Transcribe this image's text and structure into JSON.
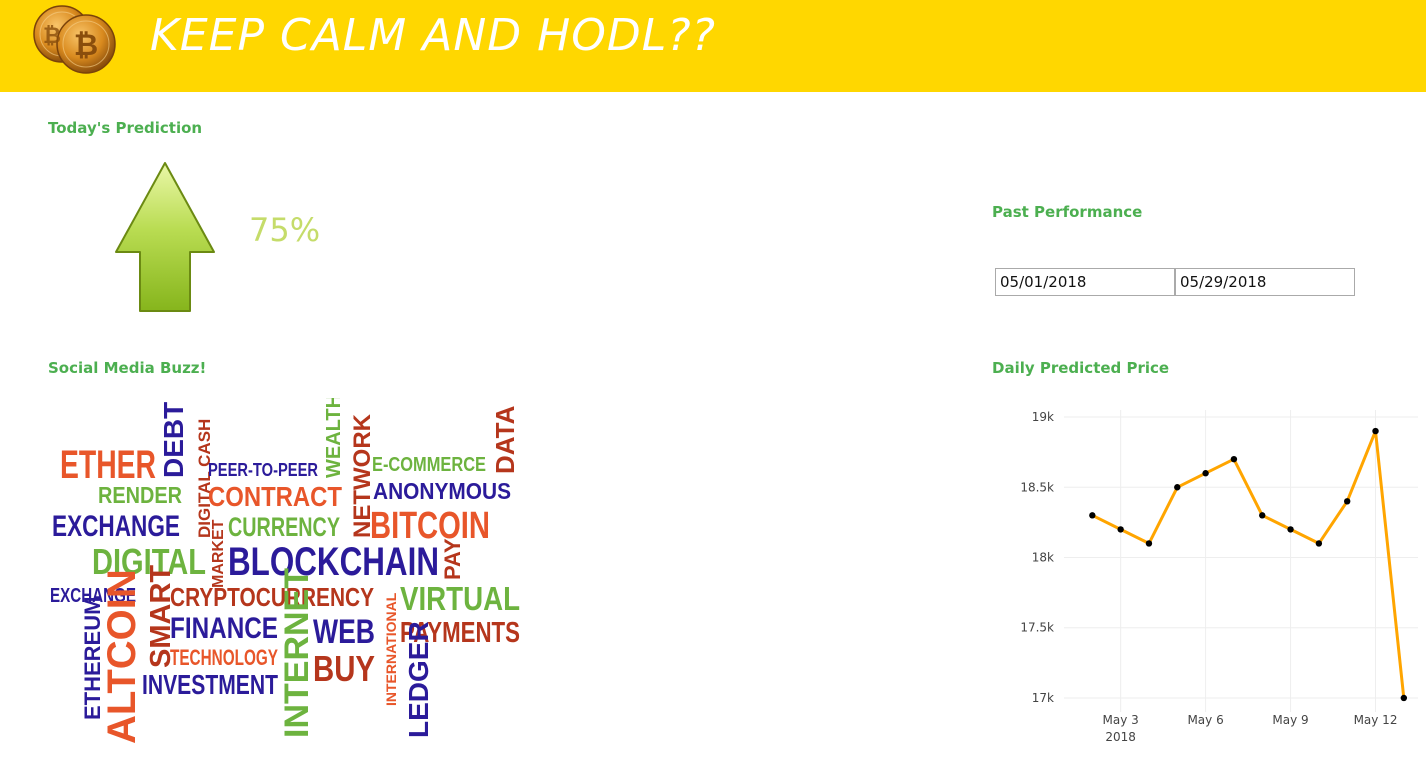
{
  "header": {
    "title": "KEEP CALM AND HODL??",
    "bg_color": "#FFD700",
    "logo_icon": "bitcoin-coins-icon"
  },
  "prediction": {
    "title": "Today's Prediction",
    "direction_icon": "arrow-up-icon",
    "percent": "75%",
    "percent_color": "#C5DC6A"
  },
  "past_performance": {
    "title": "Past Performance",
    "start_date": "05/01/2018",
    "end_date": "05/29/2018"
  },
  "social": {
    "title": "Social Media Buzz!",
    "words": [
      {
        "text": "ETHER",
        "color": "#E8562A"
      },
      {
        "text": "DEBT",
        "color": "#2B1B9A"
      },
      {
        "text": "DIGITAL CASH",
        "color": "#B5361C"
      },
      {
        "text": "PEER-TO-PEER",
        "color": "#2B1B9A"
      },
      {
        "text": "WEALTH",
        "color": "#6DB33F"
      },
      {
        "text": "NETWORK",
        "color": "#B5361C"
      },
      {
        "text": "E-COMMERCE",
        "color": "#6DB33F"
      },
      {
        "text": "DATA",
        "color": "#B5361C"
      },
      {
        "text": "RENDER",
        "color": "#6DB33F"
      },
      {
        "text": "CONTRACT",
        "color": "#E8562A"
      },
      {
        "text": "ANONYMOUS",
        "color": "#2B1B9A"
      },
      {
        "text": "EXCHANGE",
        "color": "#2B1B9A"
      },
      {
        "text": "CURRENCY",
        "color": "#6DB33F"
      },
      {
        "text": "BITCOIN",
        "color": "#E8562A"
      },
      {
        "text": "DIGITAL",
        "color": "#6DB33F"
      },
      {
        "text": "MARKET",
        "color": "#B5361C"
      },
      {
        "text": "BLOCKCHAIN",
        "color": "#2B1B9A"
      },
      {
        "text": "PAY",
        "color": "#B5361C"
      },
      {
        "text": "EXCHANGE",
        "color": "#2B1B9A"
      },
      {
        "text": "SMART",
        "color": "#B5361C"
      },
      {
        "text": "CRYPTOCURRENCY",
        "color": "#B5361C"
      },
      {
        "text": "VIRTUAL",
        "color": "#6DB33F"
      },
      {
        "text": "FINANCE",
        "color": "#2B1B9A"
      },
      {
        "text": "INTERNET",
        "color": "#6DB33F"
      },
      {
        "text": "WEB",
        "color": "#2B1B9A"
      },
      {
        "text": "INTERNATIONAL",
        "color": "#E8562A"
      },
      {
        "text": "PAYMENTS",
        "color": "#B5361C"
      },
      {
        "text": "ETHEREUM",
        "color": "#2B1B9A"
      },
      {
        "text": "ALTCOIN",
        "color": "#E8562A"
      },
      {
        "text": "TECHNOLOGY",
        "color": "#E8562A"
      },
      {
        "text": "BUY",
        "color": "#B5361C"
      },
      {
        "text": "INVESTMENT",
        "color": "#2B1B9A"
      },
      {
        "text": "LEDGER",
        "color": "#2B1B9A"
      }
    ]
  },
  "daily_price": {
    "title": "Daily Predicted Price"
  },
  "chart_data": {
    "type": "line",
    "title": "",
    "xlabel": "",
    "ylabel": "",
    "x": [
      "2018-05-02",
      "2018-05-03",
      "2018-05-04",
      "2018-05-05",
      "2018-05-06",
      "2018-05-07",
      "2018-05-08",
      "2018-05-09",
      "2018-05-10",
      "2018-05-11",
      "2018-05-12",
      "2018-05-13"
    ],
    "values": [
      18300,
      18200,
      18100,
      18500,
      18600,
      18700,
      18300,
      18200,
      18100,
      18400,
      18900,
      17000
    ],
    "ylim": [
      16900,
      19050
    ],
    "y_ticks": [
      17000,
      17500,
      18000,
      18500,
      19000
    ],
    "y_tick_labels": [
      "17k",
      "17.5k",
      "18k",
      "18.5k",
      "19k"
    ],
    "x_ticks": [
      "2018-05-03",
      "2018-05-06",
      "2018-05-09",
      "2018-05-12"
    ],
    "x_tick_labels": [
      "May 3",
      "May 6",
      "May 9",
      "May 12"
    ],
    "x_year_label": "2018",
    "grid": true,
    "line_color": "#FFA500",
    "marker_color": "#000000"
  }
}
